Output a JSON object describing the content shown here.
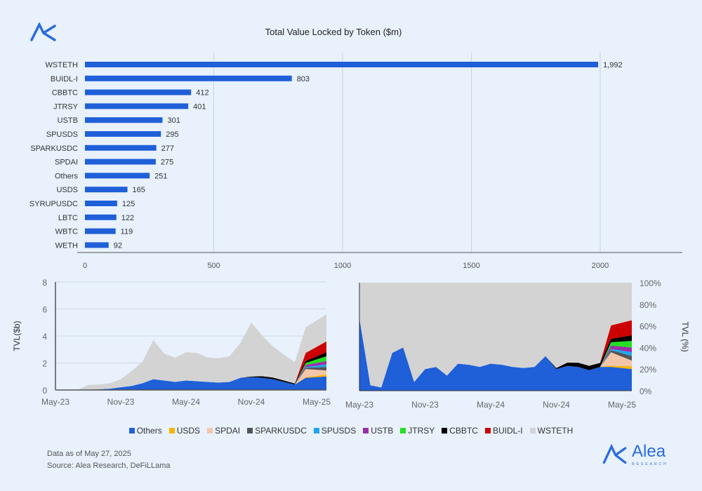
{
  "brand": {
    "name": "Alea",
    "tagline": "RESEARCH",
    "color": "#2a6be0"
  },
  "footer": {
    "date_note": "Data as of May 27, 2025",
    "source": "Source: Alea Research, DeFiLLama"
  },
  "legend": [
    {
      "name": "Others",
      "color": "#1f5fd8"
    },
    {
      "name": "USDS",
      "color": "#f7b500"
    },
    {
      "name": "SPDAI",
      "color": "#f4c6a8"
    },
    {
      "name": "SPARKUSDC",
      "color": "#555555"
    },
    {
      "name": "SPUSDS",
      "color": "#1ea7f0"
    },
    {
      "name": "USTB",
      "color": "#9b2fa8"
    },
    {
      "name": "JTRSY",
      "color": "#22e022"
    },
    {
      "name": "CBBTC",
      "color": "#000000"
    },
    {
      "name": "BUIDL-I",
      "color": "#cc0000"
    },
    {
      "name": "WSTETH",
      "color": "#d3d3d3"
    }
  ],
  "chart_data": [
    {
      "type": "bar",
      "orientation": "horizontal",
      "title": "Total Value Locked by Token ($m)",
      "categories": [
        "WSTETH",
        "BUIDL-I",
        "CBBTC",
        "JTRSY",
        "USTB",
        "SPUSDS",
        "SPARKUSDC",
        "SPDAI",
        "Others",
        "USDS",
        "SYRUPUSDC",
        "LBTC",
        "WBTC",
        "WETH"
      ],
      "values": [
        1992,
        803,
        412,
        401,
        301,
        295,
        277,
        275,
        251,
        165,
        125,
        122,
        119,
        92
      ],
      "value_labels": [
        "1,992",
        "803",
        "412",
        "401",
        "301",
        "295",
        "277",
        "275",
        "251",
        "165",
        "125",
        "122",
        "119",
        "92"
      ],
      "xlim": [
        0,
        2300
      ],
      "xticks": [
        0,
        500,
        1000,
        1500,
        2000
      ],
      "grid": "vertical",
      "bar_color": "#1f5fd8"
    },
    {
      "type": "area",
      "stacking": "absolute",
      "ylabel": "TVL($b)",
      "ylim": [
        0,
        8
      ],
      "yticks": [
        0,
        2,
        4,
        6,
        8
      ],
      "xticks": [
        "May-23",
        "Nov-23",
        "May-24",
        "Nov-24",
        "May-25"
      ],
      "x": [
        "May-23",
        "Jun-23",
        "Jul-23",
        "Aug-23",
        "Sep-23",
        "Oct-23",
        "Nov-23",
        "Dec-23",
        "Jan-24",
        "Feb-24",
        "Mar-24",
        "Apr-24",
        "May-24",
        "Jun-24",
        "Jul-24",
        "Aug-24",
        "Sep-24",
        "Oct-24",
        "Nov-24",
        "Dec-24",
        "Jan-25",
        "Feb-25",
        "Mar-25",
        "Apr-25",
        "May-25"
      ],
      "series": [
        {
          "name": "Others",
          "values": [
            0,
            0,
            0,
            0.02,
            0.05,
            0.1,
            0.2,
            0.3,
            0.5,
            0.8,
            0.7,
            0.6,
            0.7,
            0.65,
            0.6,
            0.55,
            0.6,
            0.9,
            0.95,
            0.9,
            0.8,
            0.6,
            0.4,
            0.9,
            1.0
          ]
        },
        {
          "name": "USDS",
          "values": [
            0,
            0,
            0,
            0,
            0,
            0,
            0,
            0,
            0,
            0,
            0,
            0,
            0,
            0,
            0,
            0,
            0,
            0,
            0,
            0,
            0,
            0,
            0,
            0.05,
            0.15
          ]
        },
        {
          "name": "SPDAI",
          "values": [
            0,
            0,
            0,
            0,
            0,
            0,
            0,
            0,
            0,
            0,
            0,
            0,
            0,
            0,
            0,
            0,
            0,
            0,
            0,
            0,
            0,
            0,
            0,
            0.6,
            0.3
          ]
        },
        {
          "name": "SPARKUSDC",
          "values": [
            0,
            0,
            0,
            0,
            0,
            0,
            0,
            0,
            0,
            0,
            0,
            0,
            0,
            0,
            0,
            0,
            0,
            0,
            0,
            0,
            0,
            0,
            0,
            0.1,
            0.25
          ]
        },
        {
          "name": "SPUSDS",
          "values": [
            0,
            0,
            0,
            0,
            0,
            0,
            0,
            0,
            0,
            0,
            0,
            0,
            0,
            0,
            0,
            0,
            0,
            0,
            0,
            0,
            0,
            0,
            0,
            0.05,
            0.2
          ]
        },
        {
          "name": "USTB",
          "values": [
            0,
            0,
            0,
            0,
            0,
            0,
            0,
            0,
            0,
            0,
            0,
            0,
            0,
            0,
            0,
            0,
            0,
            0,
            0,
            0,
            0,
            0,
            0,
            0.15,
            0.25
          ]
        },
        {
          "name": "JTRSY",
          "values": [
            0,
            0,
            0,
            0,
            0,
            0,
            0,
            0,
            0,
            0,
            0,
            0,
            0,
            0,
            0,
            0,
            0,
            0,
            0,
            0,
            0,
            0,
            0,
            0.15,
            0.35
          ]
        },
        {
          "name": "CBBTC",
          "values": [
            0,
            0,
            0,
            0,
            0,
            0,
            0,
            0,
            0,
            0,
            0,
            0,
            0,
            0,
            0,
            0,
            0,
            0,
            0.05,
            0.12,
            0.12,
            0.1,
            0.08,
            0.15,
            0.3
          ]
        },
        {
          "name": "BUIDL-I",
          "values": [
            0,
            0,
            0,
            0,
            0,
            0,
            0,
            0,
            0,
            0,
            0,
            0,
            0,
            0,
            0,
            0,
            0,
            0,
            0,
            0,
            0,
            0,
            0,
            0.6,
            0.8
          ]
        },
        {
          "name": "WSTETH",
          "values": [
            0,
            0,
            0,
            0.35,
            0.35,
            0.4,
            0.6,
            1.1,
            1.6,
            2.9,
            2.0,
            1.8,
            2.1,
            2.1,
            1.8,
            1.8,
            1.9,
            2.6,
            4.0,
            3.0,
            2.3,
            1.9,
            1.6,
            1.9,
            2.0
          ]
        }
      ]
    },
    {
      "type": "area",
      "stacking": "percent",
      "ylabel": "TVL (%)",
      "ylim": [
        0,
        100
      ],
      "yticks": [
        "0%",
        "20%",
        "40%",
        "60%",
        "80%",
        "100%"
      ],
      "xticks": [
        "May-23",
        "Nov-23",
        "May-24",
        "Nov-24",
        "May-25"
      ],
      "others_pct": [
        67,
        5,
        3,
        35,
        40,
        8,
        20,
        22,
        14,
        25,
        24,
        22,
        25,
        24,
        22,
        21,
        22,
        32,
        20,
        23,
        22,
        19,
        22,
        22,
        20
      ]
    }
  ]
}
